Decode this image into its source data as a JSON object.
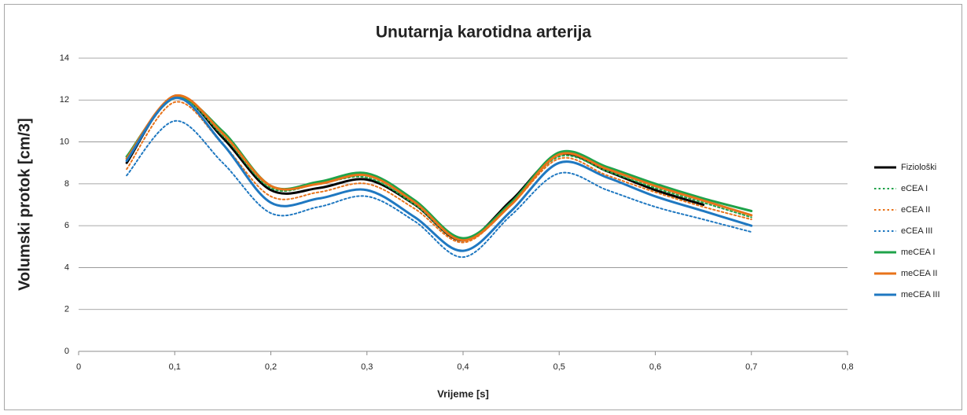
{
  "chart_data": {
    "type": "line",
    "smooth": true,
    "title": "Unutarnja karotidna arterija",
    "x_label": "Vrijeme [s]",
    "y_label": "Volumski protok [cm/3]",
    "x": [
      0.05,
      0.1,
      0.15,
      0.2,
      0.25,
      0.3,
      0.35,
      0.4,
      0.45,
      0.5,
      0.55,
      0.6,
      0.65,
      0.7
    ],
    "series": [
      {
        "name": "Fiziološki",
        "color": "#000000",
        "dash": "solid",
        "values": [
          9.0,
          12.2,
          10.2,
          7.7,
          7.8,
          8.2,
          7.0,
          5.3,
          7.2,
          9.4,
          8.6,
          7.7,
          7.0,
          null
        ]
      },
      {
        "name": "eCEA I",
        "color": "#1fa34a",
        "dash": "dot",
        "values": [
          9.1,
          12.1,
          10.3,
          7.8,
          8.0,
          8.3,
          7.0,
          5.3,
          7.1,
          9.3,
          8.6,
          7.8,
          7.1,
          6.4
        ]
      },
      {
        "name": "eCEA II",
        "color": "#e8731a",
        "dash": "dot",
        "values": [
          8.7,
          11.9,
          9.9,
          7.4,
          7.6,
          8.0,
          6.8,
          5.2,
          7.0,
          9.2,
          8.4,
          7.6,
          6.9,
          6.3
        ]
      },
      {
        "name": "eCEA III",
        "color": "#1f78c1",
        "dash": "dot",
        "values": [
          8.4,
          11.0,
          9.0,
          6.6,
          6.9,
          7.4,
          6.2,
          4.5,
          6.5,
          8.5,
          7.7,
          6.9,
          6.3,
          5.7
        ]
      },
      {
        "name": "meCEA I",
        "color": "#1fa34a",
        "dash": "solid",
        "values": [
          9.3,
          12.1,
          10.5,
          7.9,
          8.1,
          8.5,
          7.2,
          5.4,
          7.1,
          9.5,
          8.8,
          8.0,
          7.3,
          6.7
        ]
      },
      {
        "name": "meCEA II",
        "color": "#e8731a",
        "dash": "solid",
        "values": [
          9.2,
          12.2,
          10.4,
          7.9,
          8.0,
          8.4,
          7.1,
          5.3,
          7.0,
          9.4,
          8.7,
          7.9,
          7.2,
          6.5
        ]
      },
      {
        "name": "meCEA III",
        "color": "#1f78c1",
        "dash": "solid",
        "values": [
          9.1,
          12.1,
          9.9,
          7.1,
          7.3,
          7.7,
          6.4,
          4.8,
          6.7,
          9.0,
          8.3,
          7.4,
          6.7,
          6.0
        ]
      }
    ],
    "xlim": [
      0,
      0.8
    ],
    "xticks": [
      0,
      {
        "value": 0.1,
        "label": "0,1"
      },
      {
        "value": 0.2,
        "label": "0,2"
      },
      {
        "value": 0.3,
        "label": "0,3"
      },
      {
        "value": 0.4,
        "label": "0,4"
      },
      {
        "value": 0.5,
        "label": "0,5"
      },
      {
        "value": 0.6,
        "label": "0,6"
      },
      {
        "value": 0.7,
        "label": "0,7"
      },
      {
        "value": 0.8,
        "label": "0,8"
      }
    ],
    "ylim": [
      0,
      14
    ],
    "yticks": [
      0,
      2,
      4,
      6,
      8,
      10,
      12,
      14
    ],
    "grid": true,
    "legend": "right"
  }
}
